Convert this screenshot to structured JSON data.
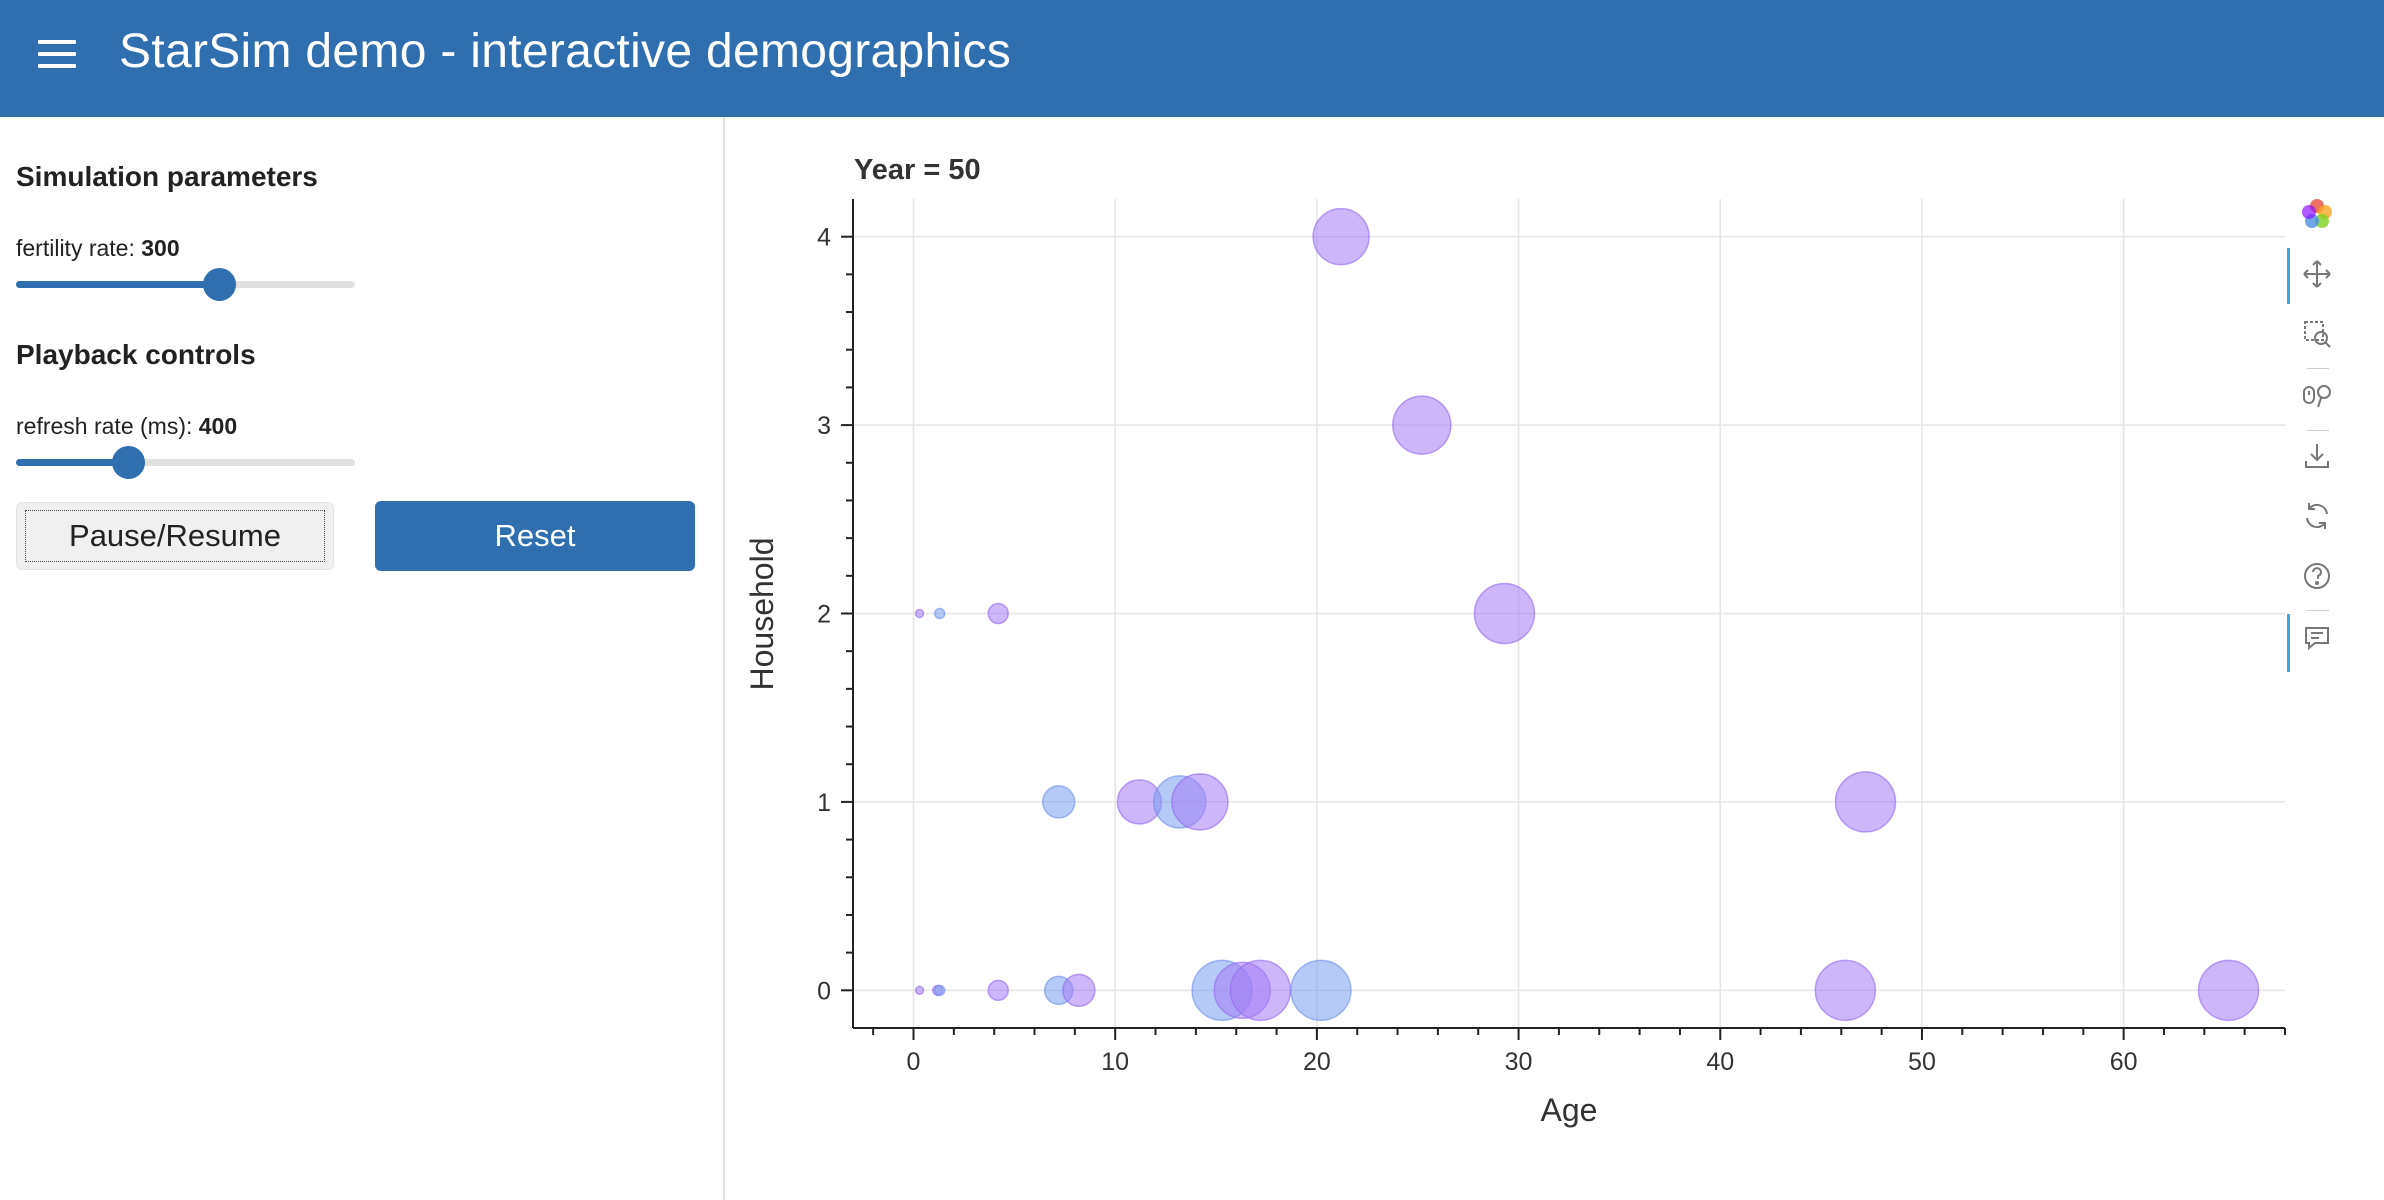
{
  "header": {
    "title": "StarSim demo - interactive demographics"
  },
  "sidebar": {
    "simulation_title": "Simulation parameters",
    "fertility": {
      "label": "fertility rate: ",
      "value": "300",
      "fraction": 0.6
    },
    "playback_title": "Playback controls",
    "refresh": {
      "label": "refresh rate (ms): ",
      "value": "400",
      "fraction": 0.33
    },
    "pause_label": "Pause/Resume",
    "reset_label": "Reset"
  },
  "toolbar": {
    "tools": [
      "bokeh-logo-icon",
      "pan-icon",
      "box-zoom-icon",
      "wheel-zoom-icon",
      "save-icon",
      "reset-icon",
      "help-icon",
      "hover-icon"
    ]
  },
  "colors": {
    "accent": "#2f6fb0",
    "purple": "#a47cf5",
    "blue": "#7a9ef0"
  },
  "chart_data": {
    "type": "scatter",
    "title": "Year = 50",
    "xlabel": "Age",
    "ylabel": "Household",
    "xlim": [
      -3,
      68
    ],
    "ylim": [
      -0.2,
      4.2
    ],
    "xticks": [
      0,
      10,
      20,
      30,
      40,
      50,
      60
    ],
    "yticks": [
      0,
      1,
      2,
      3,
      4
    ],
    "grid": true,
    "points": [
      {
        "x": 0.3,
        "y": 2,
        "size": 4,
        "color": "purple"
      },
      {
        "x": 1.3,
        "y": 2,
        "size": 5,
        "color": "blue"
      },
      {
        "x": 4.2,
        "y": 2,
        "size": 10,
        "color": "purple"
      },
      {
        "x": 21.2,
        "y": 4,
        "size": 28,
        "color": "purple"
      },
      {
        "x": 25.2,
        "y": 3,
        "size": 29,
        "color": "purple"
      },
      {
        "x": 29.3,
        "y": 2,
        "size": 30,
        "color": "purple"
      },
      {
        "x": 7.2,
        "y": 1,
        "size": 16,
        "color": "blue"
      },
      {
        "x": 11.2,
        "y": 1,
        "size": 22,
        "color": "purple"
      },
      {
        "x": 13.2,
        "y": 1,
        "size": 26,
        "color": "blue"
      },
      {
        "x": 14.2,
        "y": 1,
        "size": 28,
        "color": "purple"
      },
      {
        "x": 47.2,
        "y": 1,
        "size": 30,
        "color": "purple"
      },
      {
        "x": 0.3,
        "y": 0,
        "size": 4,
        "color": "purple"
      },
      {
        "x": 1.2,
        "y": 0,
        "size": 5,
        "color": "purple"
      },
      {
        "x": 1.3,
        "y": 0,
        "size": 5,
        "color": "blue"
      },
      {
        "x": 4.2,
        "y": 0,
        "size": 10,
        "color": "purple"
      },
      {
        "x": 7.2,
        "y": 0,
        "size": 14,
        "color": "blue"
      },
      {
        "x": 8.2,
        "y": 0,
        "size": 16,
        "color": "purple"
      },
      {
        "x": 15.3,
        "y": 0,
        "size": 30,
        "color": "blue"
      },
      {
        "x": 16.3,
        "y": 0,
        "size": 28,
        "color": "purple"
      },
      {
        "x": 17.2,
        "y": 0,
        "size": 30,
        "color": "purple"
      },
      {
        "x": 20.2,
        "y": 0,
        "size": 30,
        "color": "blue"
      },
      {
        "x": 46.2,
        "y": 0,
        "size": 30,
        "color": "purple"
      },
      {
        "x": 65.2,
        "y": 0,
        "size": 30,
        "color": "purple"
      }
    ]
  }
}
